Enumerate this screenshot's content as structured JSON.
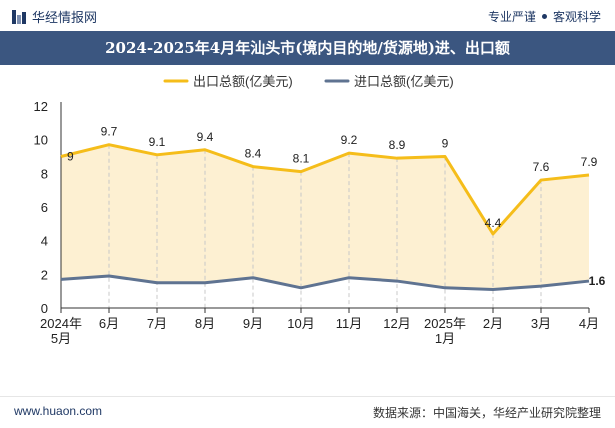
{
  "header": {
    "brand": "华经情报网",
    "tagline_left": "专业严谨",
    "tagline_right": "客观科学"
  },
  "colors": {
    "export": "#f5bd1a",
    "import": "#5f7391",
    "fill": "#fdf0d2",
    "title_bg": "#3b5680"
  },
  "chart_data": {
    "type": "line",
    "title": "2024-2025年4月年汕头市(境内目的地/货源地)进、出口额",
    "categories": [
      "2024年\n5月",
      "6月",
      "7月",
      "8月",
      "9月",
      "10月",
      "11月",
      "12月",
      "2025年\n1月",
      "2月",
      "3月",
      "4月"
    ],
    "ylim": [
      0,
      12
    ],
    "yticks": [
      0,
      2,
      4,
      6,
      8,
      10,
      12
    ],
    "legend_position": "top",
    "series": [
      {
        "name": "出口总额(亿美元)",
        "values": [
          9,
          9.7,
          9.1,
          9.4,
          8.4,
          8.1,
          9.2,
          8.9,
          9,
          4.4,
          7.6,
          7.9
        ],
        "labels": [
          "9",
          "9.7",
          "9.1",
          "9.4",
          "8.4",
          "8.1",
          "9.2",
          "8.9",
          "9",
          "4.4",
          "7.6",
          "7.9"
        ]
      },
      {
        "name": "进口总额(亿美元)",
        "values": [
          1.7,
          1.9,
          1.5,
          1.5,
          1.8,
          1.2,
          1.8,
          1.6,
          1.2,
          1.1,
          1.3,
          1.6
        ],
        "last_label": "1.6"
      }
    ]
  },
  "footer": {
    "site": "www.huaon.com",
    "source": "数据来源：中国海关，华经产业研究院整理"
  }
}
